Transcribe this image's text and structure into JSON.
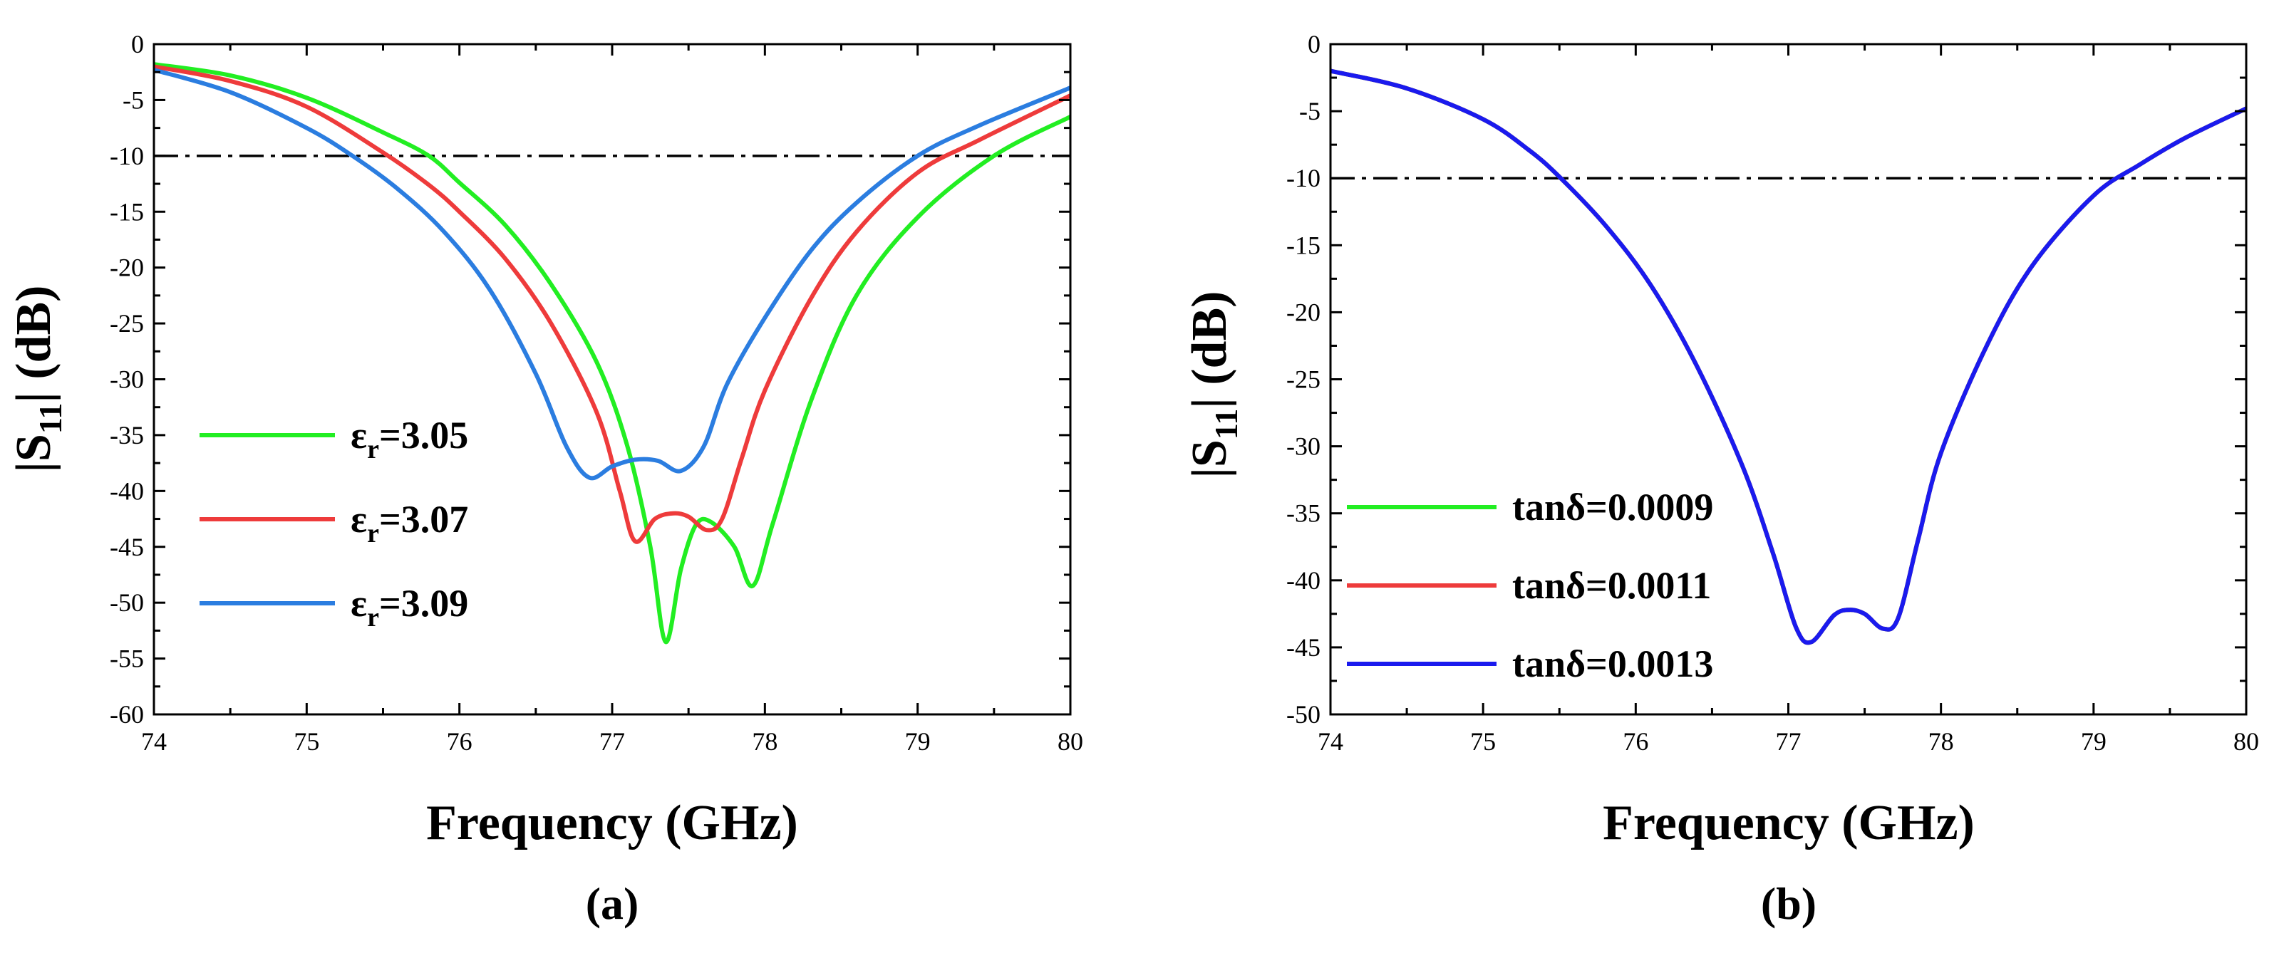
{
  "chart_data": [
    {
      "type": "line",
      "panel_label": "(a)",
      "xlabel": "Frequency (GHz)",
      "ylabel": {
        "prefix": "|S",
        "sub": "11",
        "suffix": "| (dB)"
      },
      "xlim": [
        74,
        80
      ],
      "ylim": [
        -60,
        0
      ],
      "xticks": [
        "74",
        "75",
        "76",
        "77",
        "78",
        "79",
        "80"
      ],
      "yticks": [
        "0",
        "-5",
        "-10",
        "-15",
        "-20",
        "-25",
        "-30",
        "-35",
        "-40",
        "-45",
        "-50",
        "-55",
        "-60"
      ],
      "reference_line": {
        "y": -10,
        "style": "dash-dot",
        "color": "#000000"
      },
      "legend_position": "center-left",
      "series": [
        {
          "name": "εr=3.05",
          "legend": {
            "prefix": "ε",
            "sub": "r",
            "suffix": "=3.05"
          },
          "color": "#22ee22",
          "x": [
            74.0,
            74.5,
            75.0,
            75.5,
            75.8,
            76.0,
            76.3,
            76.6,
            76.9,
            77.1,
            77.25,
            77.35,
            77.45,
            77.55,
            77.65,
            77.8,
            77.92,
            78.05,
            78.3,
            78.6,
            79.0,
            79.5,
            80.0
          ],
          "values": [
            -1.8,
            -2.8,
            -4.8,
            -7.9,
            -10.0,
            -12.4,
            -16.2,
            -21.5,
            -28.5,
            -36.0,
            -45.0,
            -53.5,
            -47.0,
            -43.0,
            -42.8,
            -45.0,
            -48.5,
            -43.0,
            -32.0,
            -22.5,
            -15.5,
            -10.0,
            -6.5
          ]
        },
        {
          "name": "εr=3.07",
          "legend": {
            "prefix": "ε",
            "sub": "r",
            "suffix": "=3.07"
          },
          "color": "#ee3b3b",
          "x": [
            74.0,
            74.5,
            75.0,
            75.5,
            75.8,
            76.0,
            76.3,
            76.6,
            76.9,
            77.05,
            77.15,
            77.28,
            77.4,
            77.5,
            77.62,
            77.72,
            77.85,
            78.0,
            78.3,
            78.6,
            79.0,
            79.4,
            80.0
          ],
          "values": [
            -2.0,
            -3.3,
            -5.6,
            -9.7,
            -12.6,
            -15.0,
            -19.2,
            -25.0,
            -33.0,
            -40.0,
            -44.5,
            -42.5,
            -42.0,
            -42.3,
            -43.5,
            -42.5,
            -37.0,
            -31.0,
            -22.8,
            -16.8,
            -11.5,
            -8.6,
            -4.6
          ]
        },
        {
          "name": "εr=3.09",
          "legend": {
            "prefix": "ε",
            "sub": "r",
            "suffix": "=3.09"
          },
          "color": "#2b7de0",
          "x": [
            74.0,
            74.5,
            75.0,
            75.3,
            75.6,
            75.9,
            76.2,
            76.5,
            76.7,
            76.85,
            77.0,
            77.15,
            77.3,
            77.45,
            77.6,
            77.75,
            78.0,
            78.3,
            78.6,
            79.0,
            79.4,
            80.0
          ],
          "values": [
            -2.3,
            -4.3,
            -7.5,
            -10.0,
            -13.0,
            -16.8,
            -22.0,
            -29.5,
            -36.0,
            -38.8,
            -37.8,
            -37.2,
            -37.3,
            -38.2,
            -36.0,
            -30.5,
            -24.5,
            -18.5,
            -14.2,
            -10.0,
            -7.3,
            -3.9
          ]
        }
      ]
    },
    {
      "type": "line",
      "panel_label": "(b)",
      "xlabel": "Frequency (GHz)",
      "ylabel": {
        "prefix": "|S",
        "sub": "11",
        "suffix": "| (dB)"
      },
      "xlim": [
        74,
        80
      ],
      "ylim": [
        -50,
        0
      ],
      "xticks": [
        "74",
        "75",
        "76",
        "77",
        "78",
        "79",
        "80"
      ],
      "yticks": [
        "0",
        "-5",
        "-10",
        "-15",
        "-20",
        "-25",
        "-30",
        "-35",
        "-40",
        "-45",
        "-50"
      ],
      "reference_line": {
        "y": -10,
        "style": "dash-dot",
        "color": "#000000"
      },
      "legend_position": "bottom-left",
      "series": [
        {
          "name": "tanδ=0.0009",
          "legend": {
            "prefix": "tanδ=0.0009",
            "sub": "",
            "suffix": ""
          },
          "color": "#22ee22",
          "x": [
            74.0,
            74.5,
            75.0,
            75.3,
            75.5,
            75.8,
            76.1,
            76.4,
            76.7,
            76.9,
            77.05,
            77.15,
            77.3,
            77.4,
            77.5,
            77.62,
            77.72,
            77.85,
            78.0,
            78.3,
            78.6,
            79.0,
            79.3,
            79.6,
            80.0
          ],
          "values": [
            -2.0,
            -3.3,
            -5.6,
            -7.9,
            -9.9,
            -13.5,
            -18.0,
            -24.0,
            -31.5,
            -38.0,
            -43.5,
            -44.6,
            -42.6,
            -42.2,
            -42.5,
            -43.6,
            -42.8,
            -37.0,
            -30.5,
            -22.5,
            -16.5,
            -11.3,
            -9.0,
            -7.0,
            -4.8
          ]
        },
        {
          "name": "tanδ=0.0011",
          "legend": {
            "prefix": "tanδ=0.0011",
            "sub": "",
            "suffix": ""
          },
          "color": "#ee3b3b",
          "x": [
            74.0,
            74.5,
            75.0,
            75.3,
            75.5,
            75.8,
            76.1,
            76.4,
            76.7,
            76.9,
            77.05,
            77.15,
            77.3,
            77.4,
            77.5,
            77.62,
            77.72,
            77.85,
            78.0,
            78.3,
            78.6,
            79.0,
            79.3,
            79.6,
            80.0
          ],
          "values": [
            -2.0,
            -3.3,
            -5.6,
            -7.9,
            -9.9,
            -13.5,
            -18.0,
            -24.0,
            -31.5,
            -38.0,
            -43.5,
            -44.6,
            -42.6,
            -42.2,
            -42.5,
            -43.6,
            -42.8,
            -37.0,
            -30.5,
            -22.5,
            -16.5,
            -11.3,
            -9.0,
            -7.0,
            -4.8
          ]
        },
        {
          "name": "tanδ=0.0013",
          "legend": {
            "prefix": "tanδ=0.0013",
            "sub": "",
            "suffix": ""
          },
          "color": "#1a1aee",
          "x": [
            74.0,
            74.5,
            75.0,
            75.3,
            75.5,
            75.8,
            76.1,
            76.4,
            76.7,
            76.9,
            77.05,
            77.15,
            77.3,
            77.4,
            77.5,
            77.62,
            77.72,
            77.85,
            78.0,
            78.3,
            78.6,
            79.0,
            79.3,
            79.6,
            80.0
          ],
          "values": [
            -2.0,
            -3.3,
            -5.6,
            -7.9,
            -9.9,
            -13.5,
            -18.0,
            -24.0,
            -31.5,
            -38.0,
            -43.5,
            -44.6,
            -42.6,
            -42.2,
            -42.5,
            -43.6,
            -42.8,
            -37.0,
            -30.5,
            -22.5,
            -16.5,
            -11.3,
            -9.0,
            -7.0,
            -4.8
          ]
        }
      ]
    }
  ]
}
